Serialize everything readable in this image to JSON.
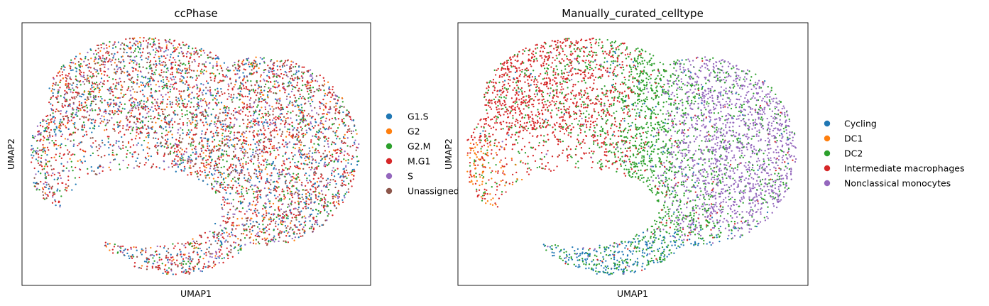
{
  "chart_data": [
    {
      "type": "scatter",
      "title": "ccPhase",
      "xlabel": "UMAP1",
      "ylabel": "UMAP2",
      "xticks": [],
      "yticks": [],
      "grid": false,
      "legend_position": "right-outside",
      "point_count_approx": 5000,
      "categories": [
        {
          "name": "G1.S",
          "color": "#1f77b4",
          "share": 0.15
        },
        {
          "name": "G2",
          "color": "#ff7f0e",
          "share": 0.07
        },
        {
          "name": "G2.M",
          "color": "#2ca02c",
          "share": 0.16
        },
        {
          "name": "M.G1",
          "color": "#d62728",
          "share": 0.33
        },
        {
          "name": "S",
          "color": "#9467bd",
          "share": 0.13
        },
        {
          "name": "Unassigned",
          "color": "#8c564b",
          "share": 0.16
        }
      ]
    },
    {
      "type": "scatter",
      "title": "Manually_curated_celltype",
      "xlabel": "UMAP1",
      "ylabel": "UMAP2",
      "xticks": [],
      "yticks": [],
      "grid": false,
      "legend_position": "right-outside",
      "point_count_approx": 5000,
      "categories": [
        {
          "name": "Cycling",
          "color": "#1f77b4",
          "region": "bottom rim of the embedding"
        },
        {
          "name": "DC1",
          "color": "#ff7f0e",
          "region": "lower-left edge"
        },
        {
          "name": "DC2",
          "color": "#2ca02c",
          "region": "scattered through the center"
        },
        {
          "name": "Intermediate macrophages",
          "color": "#d62728",
          "region": "upper-left arc"
        },
        {
          "name": "Nonclassical monocytes",
          "color": "#9467bd",
          "region": "right side"
        }
      ]
    }
  ]
}
